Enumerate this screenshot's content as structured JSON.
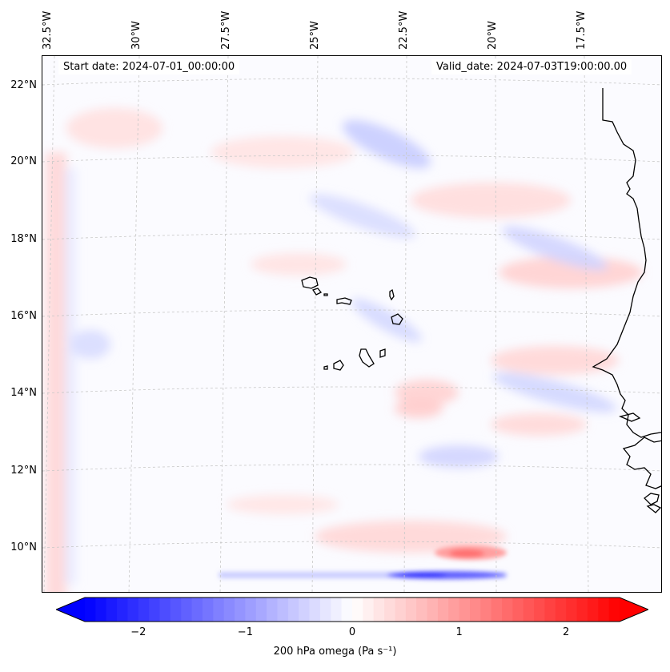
{
  "header": {
    "start_date": "Start date: 2024-07-01_00:00:00",
    "valid_date": "Valid_date: 2024-07-03T19:00:00.00"
  },
  "map": {
    "lon_labels": [
      "32.5°W",
      "30°W",
      "27.5°W",
      "25°W",
      "22.5°W",
      "20°W",
      "17.5°W"
    ],
    "lat_labels": [
      "22°N",
      "20°N",
      "18°N",
      "16°N",
      "14°N",
      "12°N",
      "10°N"
    ],
    "coastline_color": "#000000",
    "gridline_color": "#c8c8c8"
  },
  "colorbar": {
    "ticks": [
      "−2",
      "−1",
      "0",
      "1",
      "2"
    ],
    "tick_values": [
      -2,
      -1,
      0,
      1,
      2
    ],
    "range": [
      -2.5,
      2.5
    ],
    "colormap": "bwr",
    "label": "200 hPa omega (Pa s⁻¹)",
    "min_color": "#0000ff",
    "mid_color": "#ffffff",
    "max_color": "#ff0000"
  }
}
